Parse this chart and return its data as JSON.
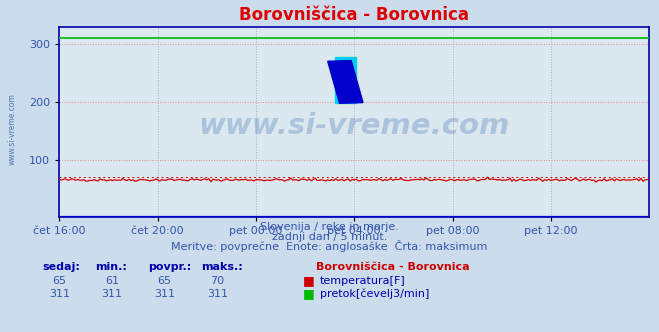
{
  "title": "Borovniščica - Borovnica",
  "title_color": "#dd0000",
  "bg_color": "#ccdcec",
  "plot_bg_color": "#dce8f0",
  "grid_color_h": "#dd8888",
  "grid_color_v": "#aaaacc",
  "x_tick_labels": [
    "čet 16:00",
    "čet 20:00",
    "pet 00:00",
    "pet 04:00",
    "pet 08:00",
    "pet 12:00"
  ],
  "x_ticks_norm": [
    0.0,
    0.1667,
    0.3333,
    0.5,
    0.6667,
    0.8333
  ],
  "y_ticks": [
    100,
    200,
    300
  ],
  "ylim_min": 0,
  "ylim_max": 330,
  "xlim_min": 0,
  "xlim_max": 1,
  "temp_avg": 65,
  "temp_min": 61,
  "temp_max": 70,
  "flow_value": 311,
  "temp_color": "#cc0000",
  "flow_color": "#00bb00",
  "height_color": "#0000cc",
  "subtitle1": "Slovenija / reke in morje.",
  "subtitle2": "zadnji dan / 5 minut.",
  "subtitle3": "Meritve: povprečne  Enote: anglosaške  Črta: maksimum",
  "subtitle_color": "#3355aa",
  "watermark": "www.si-vreme.com",
  "watermark_color": "#3366aa",
  "left_watermark": "www.si-vreme.com",
  "legend_title": "Borovniščica - Borovnica",
  "legend_title_color": "#cc0000",
  "legend_color": "#0000aa",
  "header_labels": [
    "sedaj:",
    "min.:",
    "povpr.:",
    "maks.:"
  ],
  "row1_values": [
    "65",
    "61",
    "65",
    "70"
  ],
  "row2_values": [
    "311",
    "311",
    "311",
    "311"
  ],
  "legend_item1": "temperatura[F]",
  "legend_item2": "pretok[čevelj3/min]",
  "axis_color": "#0000aa",
  "tick_color": "#3355aa",
  "font_size_title": 12,
  "font_size_ticks": 8,
  "font_size_subtitle": 8,
  "font_size_legend": 8,
  "logo_yellow": "#ffff00",
  "logo_cyan": "#00ccff",
  "logo_blue": "#0000cc"
}
